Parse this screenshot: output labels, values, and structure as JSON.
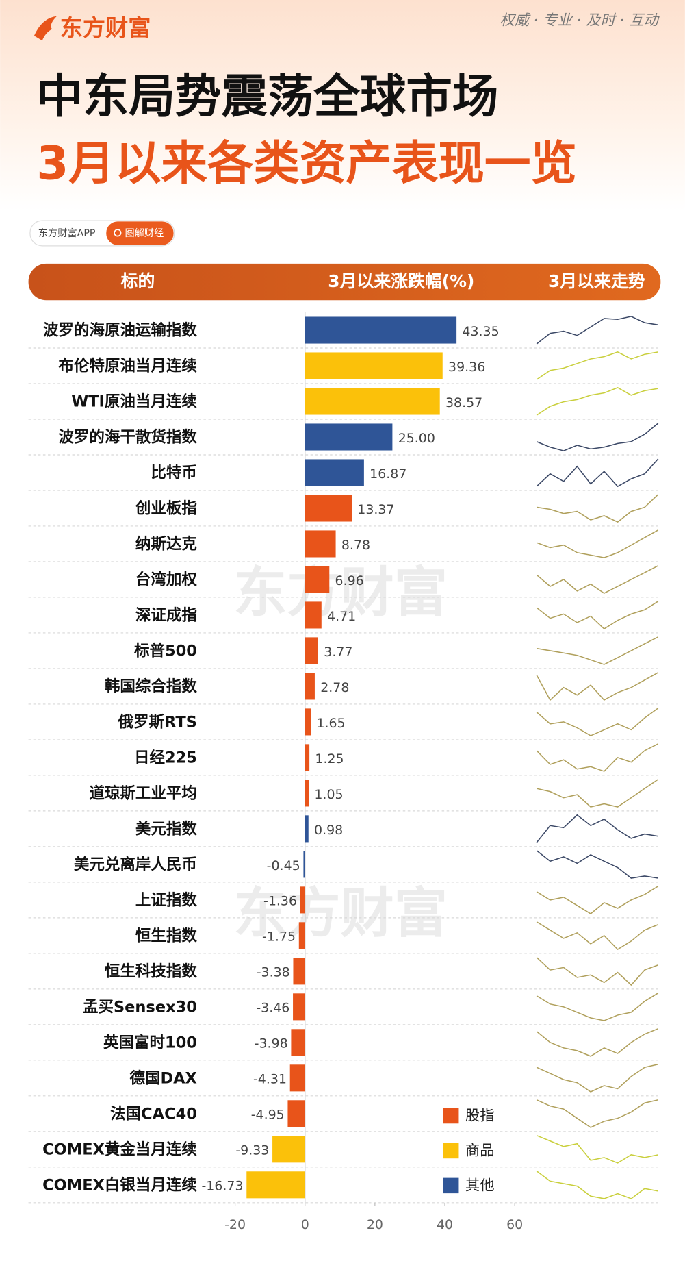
{
  "header": {
    "brand": "东方财富",
    "slogan": "权威 · 专业 · 及时 · 互动",
    "title": "中东局势震荡全球市场",
    "subtitle": "3月以来各类资产表现一览",
    "badge_app": "东方财富APP",
    "badge_tag": "图解财经",
    "watermark": "东方财富"
  },
  "chart_data": {
    "type": "hbar",
    "columns": [
      "标的",
      "3月以来涨跌幅(%)",
      "3月以来走势"
    ],
    "categories": [
      "波罗的海原油运输指数",
      "布伦特原油当月连续",
      "WTI原油当月连续",
      "波罗的海干散货指数",
      "比特币",
      "创业板指",
      "纳斯达克",
      "台湾加权",
      "深证成指",
      "标普500",
      "韩国综合指数",
      "俄罗斯RTS",
      "日经225",
      "道琼斯工业平均",
      "美元指数",
      "美元兑离岸人民币",
      "上证指数",
      "恒生指数",
      "恒生科技指数",
      "孟买Sensex30",
      "英国富时100",
      "德国DAX",
      "法国CAC40",
      "COMEX黄金当月连续",
      "COMEX白银当月连续"
    ],
    "series": [
      {
        "name": "股指",
        "color": "#e8541a",
        "trend_color": "#b0a05c",
        "values": [
          null,
          null,
          null,
          null,
          null,
          13.37,
          8.78,
          6.96,
          4.71,
          3.77,
          2.78,
          1.65,
          1.25,
          1.05,
          null,
          null,
          -1.36,
          -1.75,
          -3.38,
          -3.46,
          -3.98,
          -4.31,
          -4.95,
          null,
          null
        ],
        "value_labels": [
          null,
          null,
          null,
          null,
          null,
          "13.37",
          "8.78",
          "6.96",
          "4.71",
          "3.77",
          "2.78",
          "1.65",
          "1.25",
          "1.05",
          null,
          null,
          "-1.36",
          "-1.75",
          "-3.38",
          "-3.46",
          "-3.98",
          "-4.31",
          "-4.95",
          null,
          null
        ]
      },
      {
        "name": "商品",
        "color": "#fbc10a",
        "trend_color": "#c9cf3c",
        "values": [
          null,
          39.36,
          38.57,
          null,
          null,
          null,
          null,
          null,
          null,
          null,
          null,
          null,
          null,
          null,
          null,
          null,
          null,
          null,
          null,
          null,
          null,
          null,
          null,
          -9.33,
          -16.73
        ],
        "value_labels": [
          null,
          "39.36",
          "38.57",
          null,
          null,
          null,
          null,
          null,
          null,
          null,
          null,
          null,
          null,
          null,
          null,
          null,
          null,
          null,
          null,
          null,
          null,
          null,
          null,
          "-9.33",
          "-16.73"
        ]
      },
      {
        "name": "其他",
        "color": "#2f5597",
        "trend_color": "#3b4866",
        "values": [
          43.35,
          null,
          null,
          25.0,
          16.87,
          null,
          null,
          null,
          null,
          null,
          null,
          null,
          null,
          null,
          0.98,
          -0.45,
          null,
          null,
          null,
          null,
          null,
          null,
          null,
          null,
          null
        ],
        "value_labels": [
          "43.35",
          null,
          null,
          "25.00",
          "16.87",
          null,
          null,
          null,
          null,
          null,
          null,
          null,
          null,
          null,
          "0.98",
          "-0.45",
          null,
          null,
          null,
          null,
          null,
          null,
          null,
          null,
          null
        ]
      }
    ],
    "trends": [
      [
        20,
        45,
        50,
        40,
        60,
        80,
        78,
        85,
        70,
        65
      ],
      [
        10,
        30,
        35,
        45,
        55,
        60,
        70,
        55,
        65,
        70
      ],
      [
        10,
        30,
        40,
        45,
        55,
        60,
        72,
        55,
        65,
        70
      ],
      [
        40,
        25,
        15,
        30,
        20,
        25,
        35,
        40,
        60,
        90
      ],
      [
        30,
        55,
        40,
        70,
        35,
        60,
        30,
        45,
        55,
        85
      ],
      [
        60,
        55,
        45,
        50,
        30,
        40,
        25,
        50,
        60,
        90
      ],
      [
        60,
        50,
        55,
        40,
        35,
        30,
        40,
        55,
        70,
        85
      ],
      [
        65,
        40,
        55,
        30,
        45,
        25,
        40,
        55,
        70,
        85
      ],
      [
        70,
        45,
        55,
        35,
        50,
        20,
        40,
        55,
        65,
        85
      ],
      [
        60,
        55,
        50,
        45,
        35,
        25,
        40,
        55,
        70,
        85
      ],
      [
        80,
        30,
        55,
        40,
        60,
        30,
        45,
        55,
        70,
        85
      ],
      [
        75,
        45,
        50,
        35,
        15,
        30,
        45,
        30,
        60,
        85
      ],
      [
        70,
        40,
        50,
        30,
        35,
        25,
        55,
        45,
        70,
        85
      ],
      [
        60,
        55,
        45,
        50,
        30,
        35,
        30,
        45,
        60,
        75
      ],
      [
        20,
        60,
        55,
        85,
        60,
        75,
        50,
        30,
        40,
        35
      ],
      [
        85,
        60,
        70,
        55,
        75,
        60,
        45,
        20,
        25,
        20
      ],
      [
        70,
        55,
        60,
        45,
        30,
        50,
        40,
        55,
        65,
        80
      ],
      [
        75,
        60,
        45,
        55,
        35,
        50,
        25,
        40,
        60,
        70
      ],
      [
        80,
        55,
        60,
        40,
        45,
        30,
        50,
        25,
        55,
        65
      ],
      [
        75,
        60,
        55,
        45,
        35,
        30,
        40,
        45,
        65,
        80
      ],
      [
        75,
        55,
        45,
        40,
        30,
        45,
        35,
        55,
        70,
        80
      ],
      [
        70,
        60,
        50,
        45,
        30,
        40,
        35,
        55,
        70,
        75
      ],
      [
        70,
        60,
        55,
        40,
        25,
        35,
        40,
        50,
        65,
        70
      ],
      [
        75,
        65,
        55,
        60,
        30,
        35,
        25,
        40,
        35,
        40
      ],
      [
        75,
        55,
        50,
        45,
        25,
        20,
        30,
        20,
        40,
        35
      ]
    ],
    "xlim": [
      -20,
      60
    ],
    "xticks": [
      -20,
      0,
      20,
      40,
      60
    ],
    "legend": "bottom-right"
  }
}
